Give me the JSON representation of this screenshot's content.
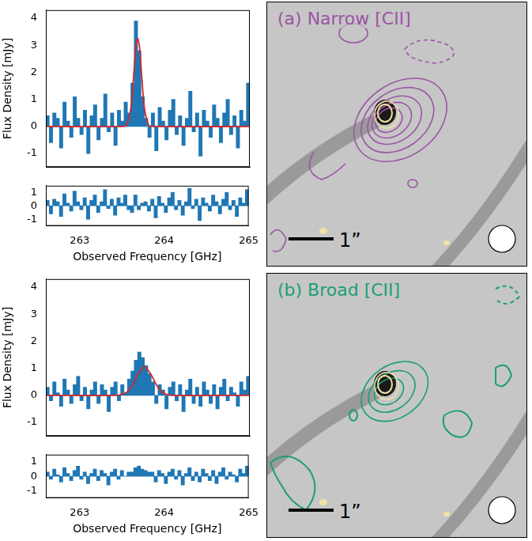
{
  "chart_data": [
    {
      "type": "bar",
      "y_label": "Flux Density [mJy]",
      "x": [
        262.62,
        262.66,
        262.7,
        262.74,
        262.78,
        262.82,
        262.86,
        262.9,
        262.94,
        262.98,
        263.02,
        263.06,
        263.1,
        263.14,
        263.18,
        263.22,
        263.26,
        263.3,
        263.34,
        263.38,
        263.42,
        263.46,
        263.5,
        263.54,
        263.58,
        263.62,
        263.66,
        263.7,
        263.74,
        263.78,
        263.82,
        263.86,
        263.9,
        263.94,
        263.98,
        264.02,
        264.06,
        264.1,
        264.14,
        264.18,
        264.22,
        264.26,
        264.3,
        264.34,
        264.38,
        264.42,
        264.46,
        264.5,
        264.54,
        264.58,
        264.62,
        264.66,
        264.7,
        264.74,
        264.78,
        264.82,
        264.86,
        264.9,
        264.94,
        264.98
      ],
      "values": [
        0.4,
        -0.6,
        0.5,
        0.3,
        -0.8,
        0.9,
        0.2,
        -0.4,
        1.1,
        0.3,
        -0.3,
        0.6,
        -1.0,
        0.4,
        0.8,
        -0.5,
        0.3,
        1.2,
        -0.2,
        0.5,
        -0.7,
        0.6,
        0.2,
        0.9,
        0.5,
        1.6,
        3.9,
        2.8,
        1.1,
        0.3,
        -0.4,
        0.5,
        -0.9,
        0.7,
        0.2,
        -0.5,
        0.6,
        1.0,
        -0.3,
        0.4,
        -0.7,
        0.3,
        1.3,
        -0.2,
        0.5,
        -1.1,
        0.6,
        0.2,
        -0.4,
        0.8,
        0.3,
        -0.6,
        0.5,
        1.0,
        -0.3,
        0.4,
        -0.8,
        0.6,
        0.2,
        1.6
      ],
      "color": "#1f77b4",
      "fit": {
        "type": "line",
        "color": "#d62728",
        "x": [
          262.6,
          263.5,
          263.55,
          263.6,
          263.63,
          263.66,
          263.68,
          263.7,
          263.73,
          263.76,
          263.81,
          263.86,
          265
        ],
        "values": [
          0,
          0,
          0.05,
          0.67,
          1.75,
          2.97,
          3.25,
          3.0,
          1.8,
          0.68,
          0.05,
          0,
          0
        ]
      },
      "xlim": [
        262.6,
        265
      ],
      "xticks": [
        263,
        264,
        265
      ],
      "ylim": [
        -1.5,
        4.3
      ],
      "yticks": [
        -1,
        0,
        1,
        2,
        3,
        4
      ],
      "grid": false,
      "tick_labels": "y"
    },
    {
      "type": "bar",
      "x_label": "Observed Frequency [GHz]",
      "x": [
        262.62,
        262.66,
        262.7,
        262.74,
        262.78,
        262.82,
        262.86,
        262.9,
        262.94,
        262.98,
        263.02,
        263.06,
        263.1,
        263.14,
        263.18,
        263.22,
        263.26,
        263.3,
        263.34,
        263.38,
        263.42,
        263.46,
        263.5,
        263.54,
        263.58,
        263.62,
        263.66,
        263.7,
        263.74,
        263.78,
        263.82,
        263.86,
        263.9,
        263.94,
        263.98,
        264.02,
        264.06,
        264.1,
        264.14,
        264.18,
        264.22,
        264.26,
        264.3,
        264.34,
        264.38,
        264.42,
        264.46,
        264.5,
        264.54,
        264.58,
        264.62,
        264.66,
        264.7,
        264.74,
        264.78,
        264.82,
        264.86,
        264.9,
        264.94,
        264.98
      ],
      "values": [
        0.4,
        -0.6,
        0.5,
        0.3,
        -0.8,
        0.9,
        0.2,
        -0.4,
        1.1,
        0.3,
        -0.3,
        0.6,
        -1.0,
        0.4,
        0.8,
        -0.5,
        0.3,
        1.2,
        -0.2,
        0.5,
        -0.7,
        0.6,
        0.2,
        0.8,
        -0.3,
        -0.5,
        0.8,
        -0.3,
        0.2,
        0.3,
        -0.4,
        0.5,
        -0.9,
        0.7,
        0.2,
        -0.5,
        0.6,
        1.0,
        -0.3,
        0.4,
        -0.7,
        0.3,
        1.3,
        -0.2,
        0.5,
        -1.1,
        0.6,
        0.2,
        -0.4,
        0.8,
        0.3,
        -0.6,
        0.5,
        1.0,
        -0.3,
        0.4,
        -0.8,
        0.6,
        0.2,
        1.2
      ],
      "color": "#1f77b4",
      "xlim": [
        262.6,
        265
      ],
      "xticks": [
        263,
        264,
        265
      ],
      "ylim": [
        -1.5,
        1.5
      ],
      "yticks": [
        -1,
        0,
        1
      ],
      "grid": false
    },
    {
      "type": "bar",
      "y_label": "Flux Density [mJy]",
      "x": [
        262.62,
        262.66,
        262.7,
        262.74,
        262.78,
        262.82,
        262.86,
        262.9,
        262.94,
        262.98,
        263.02,
        263.06,
        263.1,
        263.14,
        263.18,
        263.22,
        263.26,
        263.3,
        263.34,
        263.38,
        263.42,
        263.46,
        263.5,
        263.54,
        263.58,
        263.62,
        263.66,
        263.7,
        263.74,
        263.78,
        263.82,
        263.86,
        263.9,
        263.94,
        263.98,
        264.02,
        264.06,
        264.1,
        264.14,
        264.18,
        264.22,
        264.26,
        264.3,
        264.34,
        264.38,
        264.42,
        264.46,
        264.5,
        264.54,
        264.58,
        264.62,
        264.66,
        264.7,
        264.74,
        264.78,
        264.82,
        264.86,
        264.9,
        264.94,
        264.98
      ],
      "values": [
        0.3,
        -0.2,
        0.5,
        0.1,
        -0.4,
        0.6,
        0.2,
        -0.3,
        0.4,
        0.7,
        -0.2,
        0.3,
        -0.5,
        0.2,
        0.5,
        -0.3,
        0.4,
        0.2,
        -0.6,
        0.3,
        0.5,
        -0.2,
        0.4,
        0.1,
        0.6,
        0.9,
        1.3,
        1.6,
        1.4,
        1.1,
        0.8,
        0.5,
        -0.3,
        0.4,
        0.2,
        -0.5,
        0.3,
        0.5,
        -0.2,
        0.4,
        -0.6,
        0.2,
        0.6,
        -0.3,
        0.3,
        -0.4,
        0.5,
        0.2,
        -0.3,
        0.4,
        -0.5,
        0.3,
        0.6,
        -0.2,
        0.3,
        0.1,
        -0.4,
        0.5,
        0.2,
        0.7
      ],
      "color": "#1f77b4",
      "fit": {
        "type": "line",
        "color": "#d62728",
        "x": [
          262.6,
          263.4,
          263.5,
          263.56,
          263.62,
          263.68,
          263.76,
          263.84,
          263.9,
          263.96,
          264.02,
          264.1,
          265
        ],
        "values": [
          0,
          0,
          0.04,
          0.14,
          0.39,
          0.76,
          1.05,
          0.76,
          0.39,
          0.14,
          0.04,
          0,
          0
        ]
      },
      "xlim": [
        262.6,
        265
      ],
      "xticks": [
        263,
        264,
        265
      ],
      "ylim": [
        -1.5,
        4.3
      ],
      "yticks": [
        -1,
        0,
        1,
        2,
        3,
        4
      ],
      "grid": false,
      "tick_labels": "y"
    },
    {
      "type": "bar",
      "x_label": "Observed Frequency [GHz]",
      "x": [
        262.62,
        262.66,
        262.7,
        262.74,
        262.78,
        262.82,
        262.86,
        262.9,
        262.94,
        262.98,
        263.02,
        263.06,
        263.1,
        263.14,
        263.18,
        263.22,
        263.26,
        263.3,
        263.34,
        263.38,
        263.42,
        263.46,
        263.5,
        263.54,
        263.58,
        263.62,
        263.66,
        263.7,
        263.74,
        263.78,
        263.82,
        263.86,
        263.9,
        263.94,
        263.98,
        264.02,
        264.06,
        264.1,
        264.14,
        264.18,
        264.22,
        264.26,
        264.3,
        264.34,
        264.38,
        264.42,
        264.46,
        264.5,
        264.54,
        264.58,
        264.62,
        264.66,
        264.7,
        264.74,
        264.78,
        264.82,
        264.86,
        264.9,
        264.94,
        264.98
      ],
      "values": [
        0.3,
        -0.2,
        0.5,
        0.1,
        -0.4,
        0.6,
        0.2,
        -0.3,
        0.4,
        0.7,
        -0.2,
        0.3,
        -0.5,
        0.2,
        0.5,
        -0.3,
        0.4,
        0.2,
        -0.6,
        0.3,
        0.5,
        -0.2,
        0.4,
        0.0,
        0.3,
        0.3,
        0.6,
        0.7,
        0.5,
        0.4,
        0.3,
        0.3,
        -0.4,
        0.4,
        0.2,
        -0.5,
        0.3,
        0.5,
        -0.2,
        0.4,
        -0.6,
        0.2,
        0.6,
        -0.3,
        0.3,
        -0.4,
        0.5,
        0.2,
        -0.3,
        0.4,
        -0.5,
        0.3,
        0.6,
        -0.2,
        0.3,
        0.1,
        -0.4,
        0.5,
        0.2,
        0.7
      ],
      "color": "#1f77b4",
      "xlim": [
        262.6,
        265
      ],
      "xticks": [
        263,
        264,
        265
      ],
      "ylim": [
        -1.5,
        1.5
      ],
      "yticks": [
        -1,
        0,
        1
      ],
      "grid": false
    }
  ],
  "images": [
    {
      "title": "(a) Narrow [CII]",
      "color": "#9c54a6",
      "scale_bar": "1”"
    },
    {
      "title": "(b) Broad [CII]",
      "color": "#1b9e77",
      "scale_bar": "1”"
    }
  ]
}
